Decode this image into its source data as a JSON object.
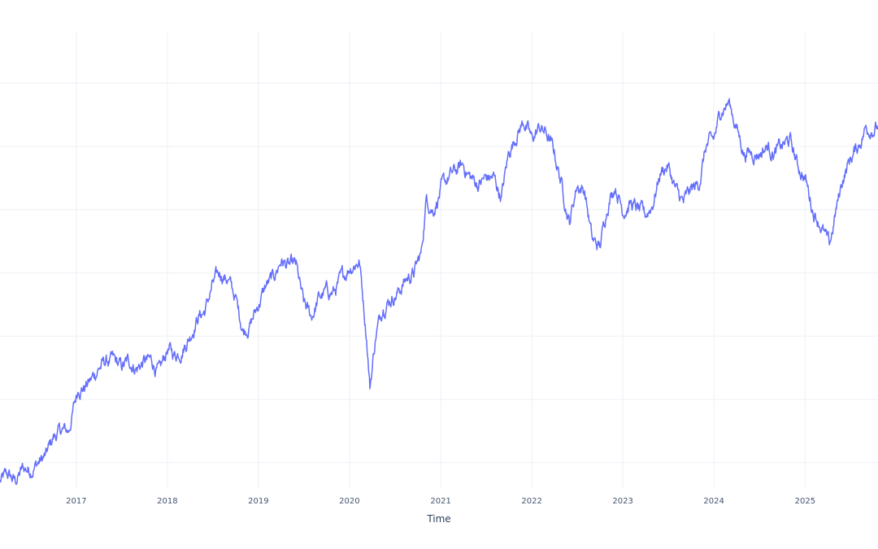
{
  "chart_data": {
    "type": "line",
    "title": "",
    "xlabel": "Time",
    "ylabel": "",
    "x_range": [
      "2016-03-01",
      "2025-10-20"
    ],
    "ylim": [
      -0.4,
      6.8
    ],
    "y_gridlines": [
      0,
      1,
      2,
      3,
      4,
      5,
      6
    ],
    "x_tick_labels": [
      "2017",
      "2018",
      "2019",
      "2020",
      "2021",
      "2022",
      "2023",
      "2024",
      "2025"
    ],
    "grid": true,
    "legend": "none",
    "series": [
      {
        "color": "#636efa",
        "x": [
          "2016-03-01",
          "2016-04-01",
          "2016-05-01",
          "2016-06-01",
          "2016-07-01",
          "2016-08-01",
          "2016-09-01",
          "2016-10-01",
          "2016-11-01",
          "2016-12-01",
          "2017-01-10",
          "2017-02-01",
          "2017-03-01",
          "2017-04-01",
          "2017-05-01",
          "2017-06-01",
          "2017-07-01",
          "2017-08-01",
          "2017-09-01",
          "2017-10-01",
          "2017-11-01",
          "2017-12-01",
          "2018-01-01",
          "2018-02-01",
          "2018-03-01",
          "2018-04-01",
          "2018-05-01",
          "2018-06-01",
          "2018-07-01",
          "2018-08-01",
          "2018-09-01",
          "2018-10-01",
          "2018-11-01",
          "2018-12-01",
          "2019-01-01",
          "2019-02-01",
          "2019-03-01",
          "2019-04-01",
          "2019-05-01",
          "2019-06-01",
          "2019-07-01",
          "2019-08-01",
          "2019-09-01",
          "2019-10-01",
          "2019-11-01",
          "2019-12-01",
          "2020-01-01",
          "2020-02-10",
          "2020-03-10",
          "2020-03-23",
          "2020-04-15",
          "2020-05-15",
          "2020-06-15",
          "2020-07-15",
          "2020-08-15",
          "2020-09-15",
          "2020-10-15",
          "2020-11-05",
          "2020-12-01",
          "2021-01-01",
          "2021-02-01",
          "2021-03-01",
          "2021-04-01",
          "2021-05-01",
          "2021-06-01",
          "2021-07-01",
          "2021-08-01",
          "2021-09-01",
          "2021-10-01",
          "2021-11-01",
          "2021-12-01",
          "2022-01-01",
          "2022-02-01",
          "2022-03-01",
          "2022-04-01",
          "2022-05-01",
          "2022-06-01",
          "2022-07-01",
          "2022-08-01",
          "2022-09-01",
          "2022-10-01",
          "2022-11-01",
          "2022-12-01",
          "2023-01-01",
          "2023-02-01",
          "2023-03-01",
          "2023-04-01",
          "2023-05-01",
          "2023-06-01",
          "2023-07-01",
          "2023-08-01",
          "2023-09-01",
          "2023-10-01",
          "2023-11-01",
          "2023-12-01",
          "2024-01-01",
          "2024-02-01",
          "2024-03-01",
          "2024-04-01",
          "2024-05-01",
          "2024-06-01",
          "2024-07-01",
          "2024-08-01",
          "2024-09-01",
          "2024-10-01",
          "2024-11-01",
          "2024-12-01",
          "2025-01-01",
          "2025-02-01",
          "2025-03-01",
          "2025-04-08",
          "2025-05-01",
          "2025-06-01",
          "2025-07-01",
          "2025-08-01",
          "2025-09-01",
          "2025-10-20"
        ],
        "y": [
          -0.3,
          -0.2,
          -0.3,
          -0.1,
          -0.1,
          0.0,
          0.1,
          0.4,
          0.5,
          0.5,
          1.2,
          1.2,
          1.3,
          1.5,
          1.6,
          1.6,
          1.5,
          1.6,
          1.5,
          1.6,
          1.6,
          1.4,
          1.8,
          1.7,
          1.8,
          2.0,
          2.3,
          2.4,
          2.8,
          3.0,
          2.9,
          2.6,
          2.1,
          2.2,
          2.5,
          2.8,
          2.9,
          3.2,
          3.1,
          3.1,
          2.5,
          2.3,
          2.6,
          2.7,
          2.7,
          2.9,
          3.1,
          3.2,
          2.0,
          1.2,
          2.0,
          2.5,
          2.6,
          2.7,
          2.9,
          3.0,
          3.3,
          4.2,
          4.0,
          4.3,
          4.5,
          4.6,
          4.7,
          4.5,
          4.4,
          4.5,
          4.5,
          4.2,
          4.9,
          5.2,
          5.4,
          5.1,
          5.3,
          5.2,
          4.9,
          4.4,
          3.8,
          4.4,
          4.3,
          3.5,
          3.4,
          4.1,
          4.4,
          4.0,
          4.1,
          4.0,
          3.9,
          4.1,
          4.6,
          4.7,
          4.3,
          4.1,
          4.3,
          4.4,
          5.0,
          5.1,
          5.6,
          5.7,
          5.3,
          4.9,
          4.9,
          4.9,
          5.0,
          4.9,
          5.0,
          5.1,
          4.7,
          4.5,
          4.0,
          3.8,
          3.4,
          3.9,
          4.5,
          4.8,
          5.0,
          5.3,
          5.3
        ]
      }
    ]
  }
}
